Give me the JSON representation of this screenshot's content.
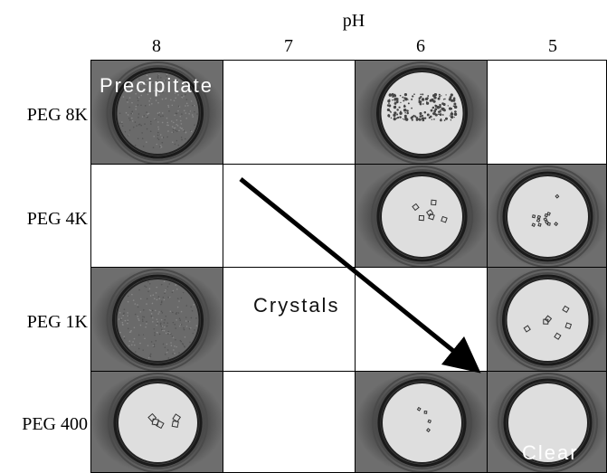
{
  "axis_title": "pH",
  "columns": [
    "8",
    "7",
    "6",
    "5"
  ],
  "rows": [
    "PEG 8K",
    "PEG 4K",
    "PEG 1K",
    "PEG 400"
  ],
  "annotations": {
    "precipitate": "Precipitate",
    "crystals": "Crystals",
    "clear": "Clear"
  },
  "cells": [
    [
      "precipitate",
      "empty",
      "precipitate-heavy",
      "empty"
    ],
    [
      "empty",
      "empty",
      "crystals",
      "crystals-small"
    ],
    [
      "precipitate",
      "empty",
      "empty",
      "crystals"
    ],
    [
      "crystals-large",
      "empty",
      "crystals-few",
      "clear"
    ]
  ],
  "colors": {
    "well_outer": "#3a3a3a",
    "well_clear": "#dedede",
    "precipitate": "#6a6a6a",
    "arrow": "#000000"
  }
}
